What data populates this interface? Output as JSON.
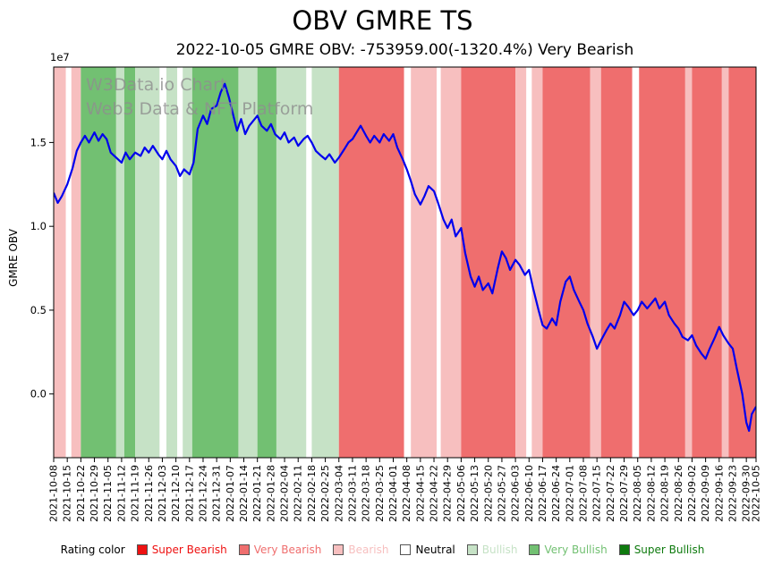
{
  "header": {
    "title": "OBV GMRE TS",
    "subtitle": "2022-10-05 GMRE OBV: -753959.00(-1320.4%) Very Bearish"
  },
  "watermark": {
    "line1": "W3Data.io Chart",
    "line2": "Web3 Data & NFT Platform"
  },
  "legend": {
    "label": "Rating color",
    "items": [
      {
        "key": "super_bearish",
        "label": "Super Bearish"
      },
      {
        "key": "very_bearish",
        "label": "Very Bearish"
      },
      {
        "key": "bearish",
        "label": "Bearish"
      },
      {
        "key": "neutral",
        "label": "Neutral"
      },
      {
        "key": "bullish",
        "label": "Bullish"
      },
      {
        "key": "very_bullish",
        "label": "Very Bullish"
      },
      {
        "key": "super_bullish",
        "label": "Super Bullish"
      }
    ]
  },
  "chart_data": {
    "type": "line",
    "title": "OBV GMRE TS",
    "xlabel": "",
    "ylabel": "GMRE OBV",
    "y_offset_label": "1e7",
    "y_unit": 10000000,
    "ylim": [
      -0.38,
      1.95
    ],
    "y_ticks": [
      0.0,
      0.5,
      1.0,
      1.5
    ],
    "grid": false,
    "legend_position": "bottom",
    "last_value": -753959.0,
    "last_change_pct": -1320.4,
    "last_rating": "Very Bearish",
    "tick_dates": [
      "2021-10-08",
      "2021-10-15",
      "2021-10-22",
      "2021-10-29",
      "2021-11-05",
      "2021-11-12",
      "2021-11-19",
      "2021-11-26",
      "2021-12-03",
      "2021-12-10",
      "2021-12-17",
      "2021-12-24",
      "2021-12-31",
      "2022-01-07",
      "2022-01-14",
      "2022-01-21",
      "2022-01-28",
      "2022-02-04",
      "2022-02-11",
      "2022-02-18",
      "2022-02-25",
      "2022-03-04",
      "2022-03-11",
      "2022-03-18",
      "2022-03-25",
      "2022-04-01",
      "2022-04-08",
      "2022-04-15",
      "2022-04-22",
      "2022-04-29",
      "2022-05-06",
      "2022-05-13",
      "2022-05-20",
      "2022-05-27",
      "2022-06-03",
      "2022-06-10",
      "2022-06-17",
      "2022-06-24",
      "2022-07-01",
      "2022-07-08",
      "2022-07-15",
      "2022-07-22",
      "2022-07-29",
      "2022-08-05",
      "2022-08-12",
      "2022-08-19",
      "2022-08-26",
      "2022-09-02",
      "2022-09-09",
      "2022-09-16",
      "2022-09-23",
      "2022-09-30",
      "2022-10-05"
    ],
    "colors": {
      "super_bearish": "#ee1111",
      "very_bearish": "#ef6e6e",
      "bearish": "#f7bfbf",
      "neutral": "#ffffff",
      "bullish": "#c6e2c6",
      "very_bullish": "#72c072",
      "super_bullish": "#0e7a0e",
      "line": "#0000ee"
    },
    "bands_unit": "weeks_from_2021-10-08",
    "bands": [
      {
        "start": 0.0,
        "end": 0.9,
        "rating": "bearish"
      },
      {
        "start": 0.9,
        "end": 1.3,
        "rating": "neutral"
      },
      {
        "start": 1.3,
        "end": 2.0,
        "rating": "bearish"
      },
      {
        "start": 2.0,
        "end": 4.6,
        "rating": "very_bullish"
      },
      {
        "start": 4.6,
        "end": 5.2,
        "rating": "bullish"
      },
      {
        "start": 5.2,
        "end": 6.0,
        "rating": "very_bullish"
      },
      {
        "start": 6.0,
        "end": 7.8,
        "rating": "bullish"
      },
      {
        "start": 7.8,
        "end": 8.3,
        "rating": "neutral"
      },
      {
        "start": 8.3,
        "end": 9.1,
        "rating": "bullish"
      },
      {
        "start": 9.1,
        "end": 9.5,
        "rating": "neutral"
      },
      {
        "start": 9.5,
        "end": 10.2,
        "rating": "bullish"
      },
      {
        "start": 10.2,
        "end": 13.6,
        "rating": "very_bullish"
      },
      {
        "start": 13.6,
        "end": 15.0,
        "rating": "bullish"
      },
      {
        "start": 15.0,
        "end": 16.4,
        "rating": "very_bullish"
      },
      {
        "start": 16.4,
        "end": 18.6,
        "rating": "bullish"
      },
      {
        "start": 18.6,
        "end": 19.0,
        "rating": "neutral"
      },
      {
        "start": 19.0,
        "end": 21.0,
        "rating": "bullish"
      },
      {
        "start": 21.0,
        "end": 25.8,
        "rating": "very_bearish"
      },
      {
        "start": 25.8,
        "end": 26.3,
        "rating": "neutral"
      },
      {
        "start": 26.3,
        "end": 28.2,
        "rating": "bearish"
      },
      {
        "start": 28.2,
        "end": 28.5,
        "rating": "neutral"
      },
      {
        "start": 28.5,
        "end": 30.0,
        "rating": "bearish"
      },
      {
        "start": 30.0,
        "end": 34.0,
        "rating": "very_bearish"
      },
      {
        "start": 34.0,
        "end": 34.8,
        "rating": "bearish"
      },
      {
        "start": 34.8,
        "end": 35.2,
        "rating": "neutral"
      },
      {
        "start": 35.2,
        "end": 36.0,
        "rating": "bearish"
      },
      {
        "start": 36.0,
        "end": 39.5,
        "rating": "very_bearish"
      },
      {
        "start": 39.5,
        "end": 40.3,
        "rating": "bearish"
      },
      {
        "start": 40.3,
        "end": 42.6,
        "rating": "very_bearish"
      },
      {
        "start": 42.6,
        "end": 43.1,
        "rating": "neutral"
      },
      {
        "start": 43.1,
        "end": 46.5,
        "rating": "very_bearish"
      },
      {
        "start": 46.5,
        "end": 47.0,
        "rating": "bearish"
      },
      {
        "start": 47.0,
        "end": 49.2,
        "rating": "very_bearish"
      },
      {
        "start": 49.2,
        "end": 49.7,
        "rating": "bearish"
      },
      {
        "start": 49.7,
        "end": 51.714,
        "rating": "very_bearish"
      }
    ],
    "series": [
      {
        "name": "GMRE OBV",
        "unit": "1e7",
        "points": [
          [
            0,
            1.2
          ],
          [
            0.3,
            1.14
          ],
          [
            0.6,
            1.18
          ],
          [
            1,
            1.25
          ],
          [
            1.4,
            1.35
          ],
          [
            1.7,
            1.45
          ],
          [
            2,
            1.5
          ],
          [
            2.3,
            1.54
          ],
          [
            2.6,
            1.5
          ],
          [
            3,
            1.56
          ],
          [
            3.3,
            1.51
          ],
          [
            3.6,
            1.55
          ],
          [
            3.9,
            1.52
          ],
          [
            4.2,
            1.44
          ],
          [
            4.6,
            1.41
          ],
          [
            5,
            1.38
          ],
          [
            5.3,
            1.44
          ],
          [
            5.6,
            1.4
          ],
          [
            6,
            1.44
          ],
          [
            6.4,
            1.42
          ],
          [
            6.7,
            1.47
          ],
          [
            7,
            1.44
          ],
          [
            7.3,
            1.48
          ],
          [
            7.7,
            1.43
          ],
          [
            8,
            1.4
          ],
          [
            8.3,
            1.45
          ],
          [
            8.6,
            1.4
          ],
          [
            9,
            1.36
          ],
          [
            9.3,
            1.3
          ],
          [
            9.6,
            1.34
          ],
          [
            10,
            1.31
          ],
          [
            10.3,
            1.38
          ],
          [
            10.6,
            1.58
          ],
          [
            11,
            1.66
          ],
          [
            11.3,
            1.61
          ],
          [
            11.6,
            1.7
          ],
          [
            12,
            1.72
          ],
          [
            12.3,
            1.8
          ],
          [
            12.6,
            1.85
          ],
          [
            12.9,
            1.77
          ],
          [
            13.2,
            1.67
          ],
          [
            13.5,
            1.57
          ],
          [
            13.8,
            1.64
          ],
          [
            14.1,
            1.55
          ],
          [
            14.4,
            1.6
          ],
          [
            14.7,
            1.63
          ],
          [
            15,
            1.66
          ],
          [
            15.3,
            1.6
          ],
          [
            15.7,
            1.57
          ],
          [
            16,
            1.61
          ],
          [
            16.3,
            1.55
          ],
          [
            16.7,
            1.52
          ],
          [
            17,
            1.56
          ],
          [
            17.3,
            1.5
          ],
          [
            17.7,
            1.53
          ],
          [
            18,
            1.48
          ],
          [
            18.4,
            1.52
          ],
          [
            18.7,
            1.54
          ],
          [
            19,
            1.5
          ],
          [
            19.3,
            1.45
          ],
          [
            19.7,
            1.42
          ],
          [
            20,
            1.4
          ],
          [
            20.3,
            1.43
          ],
          [
            20.7,
            1.38
          ],
          [
            21,
            1.41
          ],
          [
            21.4,
            1.46
          ],
          [
            21.7,
            1.5
          ],
          [
            22,
            1.52
          ],
          [
            22.3,
            1.56
          ],
          [
            22.6,
            1.6
          ],
          [
            23,
            1.54
          ],
          [
            23.3,
            1.5
          ],
          [
            23.6,
            1.54
          ],
          [
            24,
            1.5
          ],
          [
            24.3,
            1.55
          ],
          [
            24.7,
            1.51
          ],
          [
            25,
            1.55
          ],
          [
            25.3,
            1.47
          ],
          [
            25.7,
            1.4
          ],
          [
            26,
            1.34
          ],
          [
            26.3,
            1.27
          ],
          [
            26.6,
            1.19
          ],
          [
            27,
            1.13
          ],
          [
            27.3,
            1.18
          ],
          [
            27.6,
            1.24
          ],
          [
            28,
            1.21
          ],
          [
            28.3,
            1.14
          ],
          [
            28.7,
            1.04
          ],
          [
            29,
            0.99
          ],
          [
            29.3,
            1.04
          ],
          [
            29.6,
            0.94
          ],
          [
            30,
            0.99
          ],
          [
            30.3,
            0.84
          ],
          [
            30.7,
            0.7
          ],
          [
            31,
            0.64
          ],
          [
            31.3,
            0.7
          ],
          [
            31.6,
            0.62
          ],
          [
            32,
            0.66
          ],
          [
            32.3,
            0.6
          ],
          [
            32.7,
            0.75
          ],
          [
            33,
            0.85
          ],
          [
            33.3,
            0.81
          ],
          [
            33.6,
            0.74
          ],
          [
            34,
            0.8
          ],
          [
            34.3,
            0.77
          ],
          [
            34.7,
            0.71
          ],
          [
            35,
            0.74
          ],
          [
            35.3,
            0.63
          ],
          [
            35.7,
            0.5
          ],
          [
            36,
            0.41
          ],
          [
            36.3,
            0.39
          ],
          [
            36.7,
            0.45
          ],
          [
            37,
            0.41
          ],
          [
            37.3,
            0.55
          ],
          [
            37.7,
            0.67
          ],
          [
            38,
            0.7
          ],
          [
            38.3,
            0.62
          ],
          [
            38.7,
            0.55
          ],
          [
            39,
            0.5
          ],
          [
            39.3,
            0.42
          ],
          [
            39.7,
            0.34
          ],
          [
            40,
            0.27
          ],
          [
            40.3,
            0.32
          ],
          [
            40.7,
            0.38
          ],
          [
            41,
            0.42
          ],
          [
            41.3,
            0.39
          ],
          [
            41.7,
            0.47
          ],
          [
            42,
            0.55
          ],
          [
            42.3,
            0.52
          ],
          [
            42.7,
            0.47
          ],
          [
            43,
            0.5
          ],
          [
            43.3,
            0.55
          ],
          [
            43.7,
            0.51
          ],
          [
            44,
            0.54
          ],
          [
            44.3,
            0.57
          ],
          [
            44.6,
            0.51
          ],
          [
            45,
            0.55
          ],
          [
            45.3,
            0.47
          ],
          [
            45.7,
            0.42
          ],
          [
            46,
            0.39
          ],
          [
            46.3,
            0.34
          ],
          [
            46.7,
            0.32
          ],
          [
            47,
            0.35
          ],
          [
            47.3,
            0.29
          ],
          [
            47.7,
            0.24
          ],
          [
            48,
            0.21
          ],
          [
            48.3,
            0.27
          ],
          [
            48.7,
            0.34
          ],
          [
            49,
            0.4
          ],
          [
            49.3,
            0.35
          ],
          [
            49.7,
            0.3
          ],
          [
            50,
            0.27
          ],
          [
            50.3,
            0.15
          ],
          [
            50.7,
            0.0
          ],
          [
            51,
            -0.17
          ],
          [
            51.2,
            -0.22
          ],
          [
            51.4,
            -0.12
          ],
          [
            51.714,
            -0.0754
          ]
        ]
      }
    ]
  }
}
